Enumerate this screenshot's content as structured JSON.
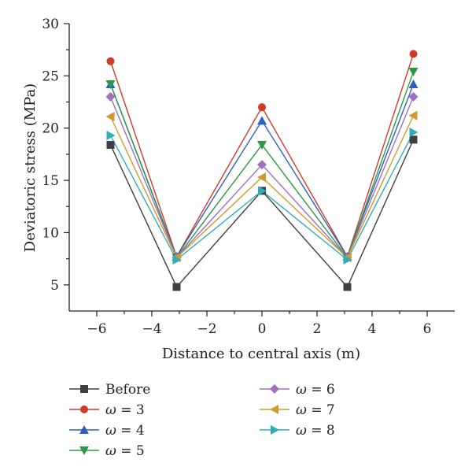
{
  "chart_data": {
    "type": "line",
    "xlabel": "Distance to central axis (m)",
    "ylabel": "Deviatoric stress (MPa)",
    "xlim": [
      -7,
      7
    ],
    "ylim": [
      2.5,
      30
    ],
    "xticks": [
      -6,
      -4,
      -2,
      0,
      2,
      4,
      6
    ],
    "yticks": [
      5,
      10,
      15,
      20,
      25,
      30
    ],
    "x": [
      -5.5,
      -3.1,
      0,
      3.1,
      5.5
    ],
    "grid": false,
    "legend_position": "bottom",
    "series": [
      {
        "name": "Before",
        "label_prefix": "",
        "label_var": "",
        "label_value": "Before",
        "color": "#404040",
        "marker": "square",
        "values": [
          18.4,
          4.8,
          14.0,
          4.8,
          18.9
        ]
      },
      {
        "name": "ω = 3",
        "label_prefix": "ω",
        "label_var": "ω",
        "label_value": " = 3",
        "color": "#d03a2b",
        "marker": "circle",
        "values": [
          26.4,
          7.7,
          22.0,
          7.7,
          27.1
        ]
      },
      {
        "name": "ω = 4",
        "label_prefix": "ω",
        "label_var": "ω",
        "label_value": " = 4",
        "color": "#2f5fbf",
        "marker": "triangle-up",
        "values": [
          24.2,
          7.7,
          20.7,
          7.7,
          24.2
        ]
      },
      {
        "name": "ω = 5",
        "label_prefix": "ω",
        "label_var": "ω",
        "label_value": " = 5",
        "color": "#2a9a48",
        "marker": "triangle-down",
        "values": [
          24.2,
          7.6,
          18.4,
          7.6,
          25.4
        ]
      },
      {
        "name": "ω = 6",
        "label_prefix": "ω",
        "label_var": "ω",
        "label_value": " = 6",
        "color": "#a070c0",
        "marker": "diamond",
        "values": [
          23.0,
          7.6,
          16.5,
          7.6,
          23.0
        ]
      },
      {
        "name": "ω = 7",
        "label_prefix": "ω",
        "label_var": "ω",
        "label_value": " = 7",
        "color": "#d19a2a",
        "marker": "triangle-left",
        "values": [
          21.1,
          7.6,
          15.3,
          7.6,
          21.2
        ]
      },
      {
        "name": "ω = 8",
        "label_prefix": "ω",
        "label_var": "ω",
        "label_value": " = 8",
        "color": "#2eaeb8",
        "marker": "triangle-right",
        "values": [
          19.3,
          7.4,
          14.0,
          7.4,
          19.6
        ]
      }
    ]
  }
}
